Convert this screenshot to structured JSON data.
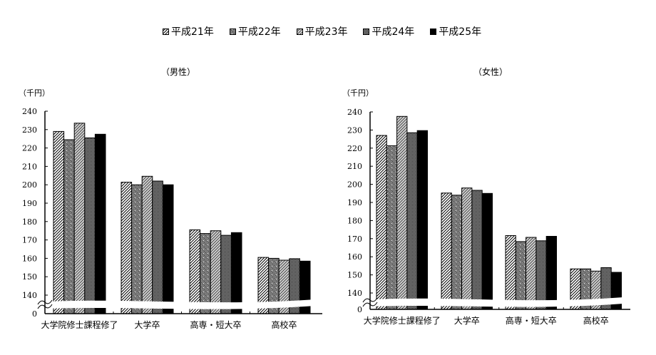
{
  "legend": {
    "items": [
      {
        "label": "平成21年",
        "pattern": "hatch"
      },
      {
        "label": "平成22年",
        "pattern": "graydots"
      },
      {
        "label": "平成23年",
        "pattern": "lightcheck"
      },
      {
        "label": "平成24年",
        "pattern": "darkcheck"
      },
      {
        "label": "平成25年",
        "pattern": "solid"
      }
    ]
  },
  "panels": [
    {
      "title": "（男性）",
      "unit": "（千円）"
    },
    {
      "title": "（女性）",
      "unit": "（千円）"
    }
  ],
  "chart_data": [
    {
      "type": "bar",
      "title": "（男性）",
      "ylabel": "（千円）",
      "xlabel": "",
      "categories": [
        "大学院修士課程修了",
        "大学卒",
        "高専・短大卒",
        "高校卒"
      ],
      "y_ticks": [
        0,
        140,
        150,
        160,
        170,
        180,
        190,
        200,
        210,
        220,
        230,
        240
      ],
      "ylim": [
        140,
        240
      ],
      "axis_break": "between 0 and 140",
      "grid": false,
      "legend_position": "top",
      "series": [
        {
          "name": "平成21年",
          "values": [
            229.0,
            201.4,
            175.5,
            160.5
          ]
        },
        {
          "name": "平成22年",
          "values": [
            224.5,
            200.0,
            173.5,
            160.0
          ]
        },
        {
          "name": "平成23年",
          "values": [
            233.5,
            204.6,
            175.0,
            159.0
          ]
        },
        {
          "name": "平成24年",
          "values": [
            225.5,
            202.0,
            172.5,
            159.8
          ]
        },
        {
          "name": "平成25年",
          "values": [
            227.5,
            200.0,
            174.0,
            158.5
          ]
        }
      ]
    },
    {
      "type": "bar",
      "title": "（女性）",
      "ylabel": "（千円）",
      "xlabel": "",
      "categories": [
        "大学院修士課程修了",
        "大学卒",
        "高専・短大卒",
        "高校卒"
      ],
      "y_ticks": [
        0,
        140,
        150,
        160,
        170,
        180,
        190,
        200,
        210,
        220,
        230,
        240
      ],
      "ylim": [
        140,
        240
      ],
      "axis_break": "between 0 and 140",
      "grid": false,
      "legend_position": "top",
      "series": [
        {
          "name": "平成21年",
          "values": [
            227.0,
            195.2,
            171.7,
            153.3
          ]
        },
        {
          "name": "平成22年",
          "values": [
            221.3,
            194.0,
            168.4,
            153.3
          ]
        },
        {
          "name": "平成23年",
          "values": [
            237.5,
            198.0,
            170.7,
            152.1
          ]
        },
        {
          "name": "平成24年",
          "values": [
            228.5,
            196.7,
            168.8,
            154.0
          ]
        },
        {
          "name": "平成25年",
          "values": [
            229.7,
            195.0,
            171.3,
            151.4
          ]
        }
      ]
    }
  ]
}
